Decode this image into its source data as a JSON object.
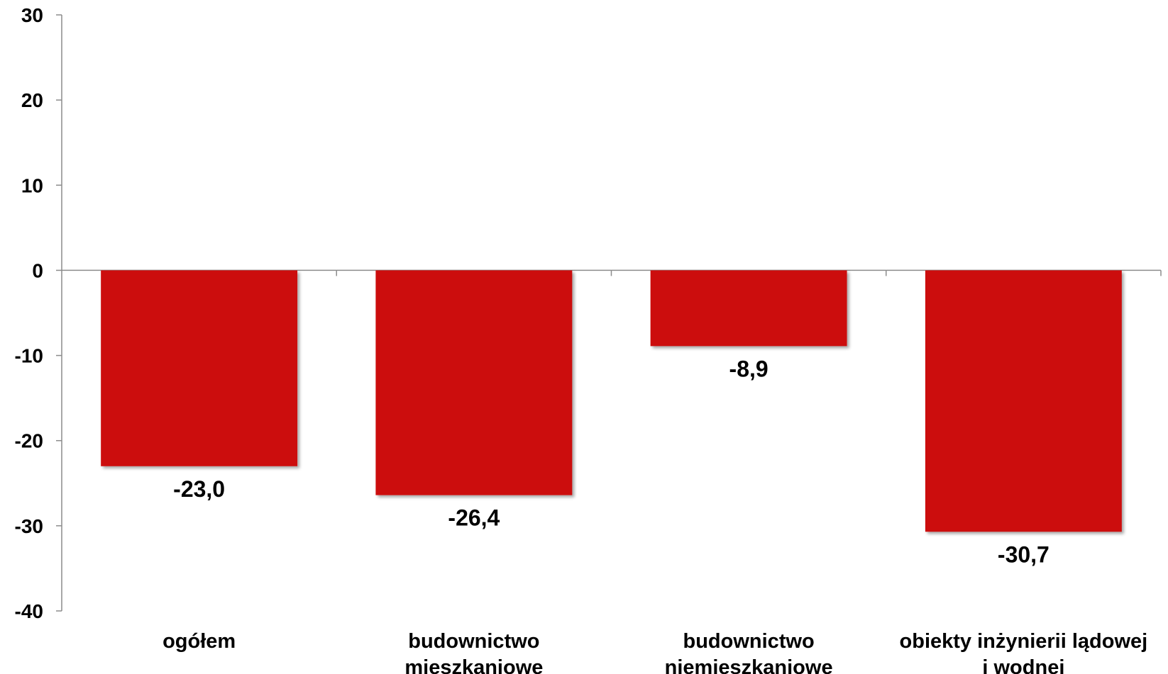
{
  "chart_data": {
    "type": "bar",
    "title": "",
    "xlabel": "",
    "ylabel": "",
    "ylim": [
      -40,
      30
    ],
    "yticks": [
      30,
      20,
      10,
      0,
      -10,
      -20,
      -30,
      -40
    ],
    "grid": false,
    "legend": "none",
    "bar_color": "#cc0a0a",
    "categories": [
      [
        "ogółem"
      ],
      [
        "budownictwo",
        "mieszkaniowe"
      ],
      [
        "budownictwo",
        "niemieszkaniowe"
      ],
      [
        "obiekty inżynierii lądowej",
        "i wodnej"
      ]
    ],
    "values": [
      -23.0,
      -26.4,
      -8.9,
      -30.7
    ],
    "value_labels": [
      "-23,0",
      "-26,4",
      "-8,9",
      "-30,7"
    ]
  }
}
